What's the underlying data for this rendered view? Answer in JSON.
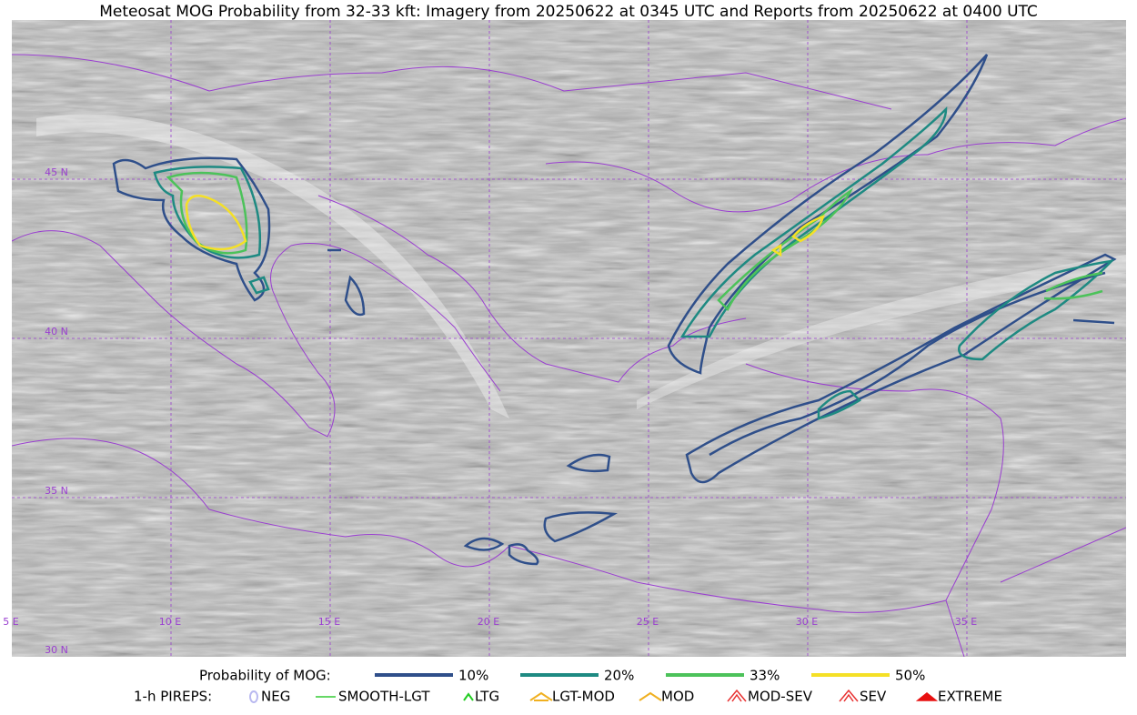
{
  "title": "Meteosat MOG Probability from 32-33 kft: Imagery from 20250622 at 0345 UTC and Reports from 20250622 at 0400 UTC",
  "lon_labels": [
    "5 E",
    "10 E",
    "15 E",
    "20 E",
    "25 E",
    "30 E",
    "35 E"
  ],
  "lat_labels": [
    "45 N",
    "40 N",
    "35 N",
    "30 N"
  ],
  "legend": {
    "mog_title": "Probability of MOG:",
    "mog_items": [
      {
        "label": "10%",
        "color": "#2f4f8a"
      },
      {
        "label": "20%",
        "color": "#1e8a82"
      },
      {
        "label": "33%",
        "color": "#4cc25a"
      },
      {
        "label": "50%",
        "color": "#f5e026"
      }
    ],
    "pirep_title": "1-h PIREPS:",
    "pirep_items": [
      {
        "label": "NEG",
        "color": "#b9b9f0"
      },
      {
        "label": "SMOOTH-LGT",
        "color": "#33cc33"
      },
      {
        "label": "LTG",
        "color": "#22cc22"
      },
      {
        "label": "LGT-MOD",
        "color": "#f0b020"
      },
      {
        "label": "MOD",
        "color": "#f0b020"
      },
      {
        "label": "MOD-SEV",
        "color": "#e83030"
      },
      {
        "label": "SEV",
        "color": "#e83030"
      },
      {
        "label": "EXTREME",
        "color": "#e81010"
      }
    ]
  }
}
